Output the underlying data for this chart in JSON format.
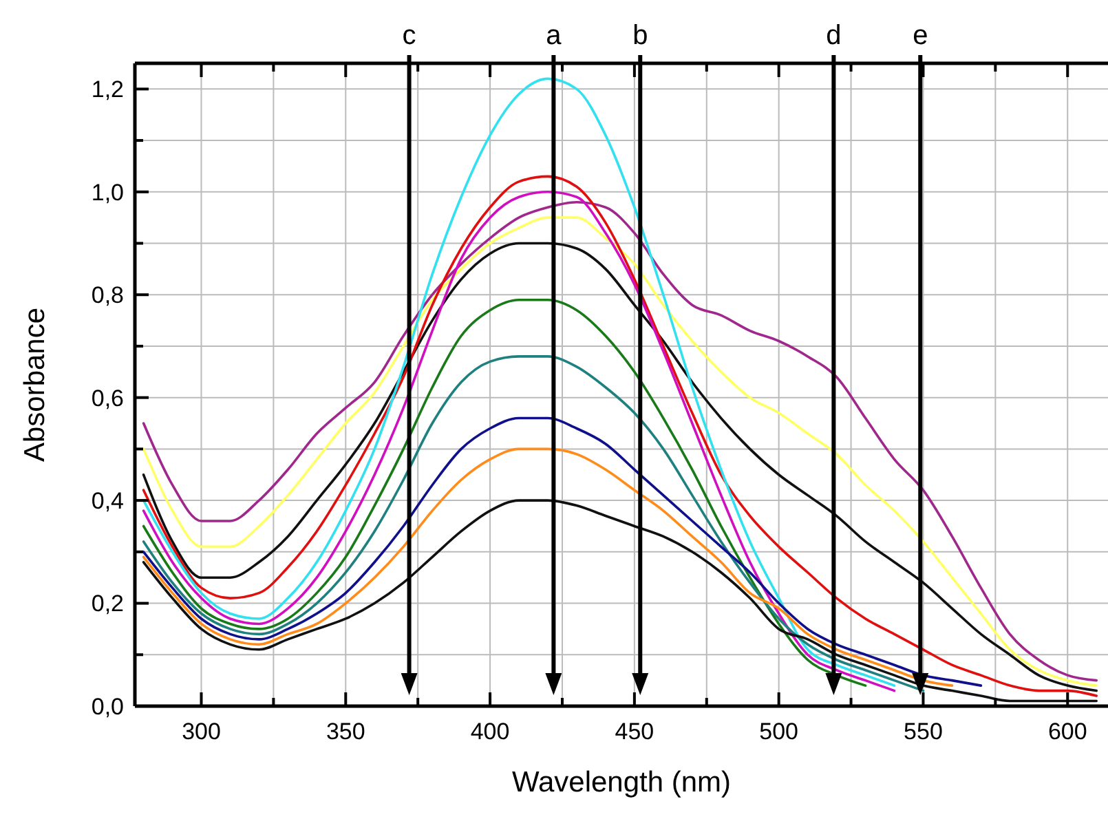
{
  "chart_data": {
    "type": "line",
    "xlabel": "Wavelength (nm)",
    "ylabel": "Absorbance",
    "x": [
      280,
      290,
      300,
      310,
      320,
      330,
      340,
      350,
      360,
      370,
      380,
      390,
      400,
      410,
      420,
      430,
      440,
      450,
      460,
      470,
      480,
      490,
      500,
      510,
      520,
      530,
      540,
      550,
      560,
      570,
      580,
      590,
      600,
      610
    ],
    "series": [
      {
        "color": "#a0288c",
        "values": [
          0.55,
          0.43,
          0.36,
          0.36,
          0.4,
          0.46,
          0.53,
          0.58,
          0.63,
          0.72,
          0.8,
          0.86,
          0.91,
          0.95,
          0.97,
          0.98,
          0.97,
          0.92,
          0.84,
          0.78,
          0.76,
          0.73,
          0.71,
          0.68,
          0.64,
          0.56,
          0.48,
          0.42,
          0.33,
          0.23,
          0.14,
          0.09,
          0.06,
          0.05
        ]
      },
      {
        "color": "#ffff66",
        "values": [
          0.5,
          0.38,
          0.31,
          0.31,
          0.35,
          0.41,
          0.48,
          0.55,
          0.61,
          0.7,
          0.79,
          0.85,
          0.9,
          0.93,
          0.95,
          0.95,
          0.91,
          0.86,
          0.78,
          0.71,
          0.65,
          0.6,
          0.57,
          0.53,
          0.49,
          0.43,
          0.38,
          0.32,
          0.25,
          0.18,
          0.11,
          0.07,
          0.05,
          0.04
        ]
      },
      {
        "color": "#111111",
        "values": [
          0.45,
          0.32,
          0.25,
          0.25,
          0.28,
          0.33,
          0.4,
          0.47,
          0.55,
          0.65,
          0.75,
          0.83,
          0.88,
          0.9,
          0.9,
          0.89,
          0.85,
          0.78,
          0.71,
          0.63,
          0.56,
          0.5,
          0.45,
          0.41,
          0.37,
          0.32,
          0.28,
          0.24,
          0.19,
          0.14,
          0.1,
          0.06,
          0.04,
          0.03
        ]
      },
      {
        "color": "#e01010",
        "values": [
          0.42,
          0.31,
          0.23,
          0.21,
          0.22,
          0.27,
          0.34,
          0.43,
          0.53,
          0.64,
          0.78,
          0.89,
          0.97,
          1.02,
          1.03,
          1.01,
          0.94,
          0.83,
          0.7,
          0.57,
          0.45,
          0.37,
          0.31,
          0.26,
          0.21,
          0.17,
          0.14,
          0.11,
          0.08,
          0.06,
          0.04,
          0.03,
          0.03,
          0.02
        ]
      },
      {
        "color": "#33e0f0",
        "values": [
          0.4,
          0.3,
          0.22,
          0.18,
          0.17,
          0.21,
          0.28,
          0.38,
          0.5,
          0.66,
          0.84,
          0.99,
          1.11,
          1.19,
          1.22,
          1.2,
          1.11,
          0.97,
          0.8,
          0.62,
          0.46,
          0.32,
          0.21,
          0.11,
          0.08,
          0.06,
          0.04,
          null,
          null,
          null,
          null,
          null,
          null,
          null
        ]
      },
      {
        "color": "#d010c0",
        "values": [
          0.38,
          0.28,
          0.21,
          0.17,
          0.16,
          0.19,
          0.25,
          0.34,
          0.45,
          0.58,
          0.73,
          0.87,
          0.95,
          0.99,
          1.0,
          0.99,
          0.92,
          0.82,
          0.69,
          0.55,
          0.41,
          0.28,
          0.18,
          0.1,
          0.07,
          0.05,
          0.03,
          null,
          null,
          null,
          null,
          null,
          null,
          null
        ]
      },
      {
        "color": "#1a7a1a",
        "values": [
          0.35,
          0.26,
          0.19,
          0.16,
          0.15,
          0.17,
          0.22,
          0.29,
          0.39,
          0.5,
          0.62,
          0.72,
          0.77,
          0.79,
          0.79,
          0.77,
          0.72,
          0.65,
          0.56,
          0.46,
          0.35,
          0.25,
          0.16,
          0.09,
          0.06,
          0.04,
          null,
          null,
          null,
          null,
          null,
          null,
          null,
          null
        ]
      },
      {
        "color": "#1f8080",
        "values": [
          0.32,
          0.24,
          0.18,
          0.15,
          0.14,
          0.16,
          0.2,
          0.26,
          0.34,
          0.44,
          0.55,
          0.63,
          0.67,
          0.68,
          0.68,
          0.66,
          0.62,
          0.57,
          0.5,
          0.41,
          0.32,
          0.24,
          0.17,
          0.12,
          0.09,
          0.07,
          0.05,
          0.03,
          null,
          null,
          null,
          null,
          null,
          null
        ]
      },
      {
        "color": "#10108c",
        "values": [
          0.3,
          0.23,
          0.17,
          0.14,
          0.13,
          0.15,
          0.18,
          0.22,
          0.28,
          0.35,
          0.43,
          0.5,
          0.54,
          0.56,
          0.56,
          0.54,
          0.51,
          0.46,
          0.41,
          0.36,
          0.31,
          0.26,
          0.2,
          0.15,
          0.12,
          0.1,
          0.08,
          0.06,
          0.05,
          0.04,
          null,
          null,
          null,
          null
        ]
      },
      {
        "color": "#ff8c1a",
        "values": [
          0.29,
          0.22,
          0.16,
          0.13,
          0.12,
          0.14,
          0.16,
          0.2,
          0.25,
          0.31,
          0.38,
          0.44,
          0.48,
          0.5,
          0.5,
          0.49,
          0.46,
          0.42,
          0.38,
          0.33,
          0.28,
          0.22,
          0.19,
          0.14,
          0.11,
          0.09,
          0.07,
          0.05,
          0.04,
          null,
          null,
          null,
          null,
          null
        ]
      },
      {
        "color": "#111111",
        "values": [
          0.28,
          0.21,
          0.15,
          0.12,
          0.11,
          0.13,
          0.15,
          0.17,
          0.2,
          0.24,
          0.29,
          0.34,
          0.38,
          0.4,
          0.4,
          0.39,
          0.37,
          0.35,
          0.33,
          0.3,
          0.26,
          0.21,
          0.15,
          0.13,
          0.1,
          0.08,
          0.06,
          0.04,
          0.03,
          0.02,
          0.01,
          0.01,
          0.01,
          0.01
        ]
      }
    ],
    "xlim": [
      277,
      614
    ],
    "ylim": [
      0,
      1.25
    ],
    "xticks": [
      300,
      {
        "value": 325,
        "label": null
      },
      350,
      {
        "value": 375,
        "label": null
      },
      400,
      {
        "value": 425,
        "label": null
      },
      450,
      {
        "value": 475,
        "label": null
      },
      500,
      {
        "value": 525,
        "label": null
      },
      550,
      {
        "value": 575,
        "label": null
      },
      600
    ],
    "yticks": [
      {
        "value": 0,
        "label": "0,0"
      },
      {
        "value": 0.1,
        "label": null
      },
      {
        "value": 0.2,
        "label": "0,2"
      },
      {
        "value": 0.3,
        "label": null
      },
      {
        "value": 0.4,
        "label": "0,4"
      },
      {
        "value": 0.5,
        "label": null
      },
      {
        "value": 0.6,
        "label": "0,6"
      },
      {
        "value": 0.7,
        "label": null
      },
      {
        "value": 0.8,
        "label": "0,8"
      },
      {
        "value": 0.9,
        "label": null
      },
      {
        "value": 1.0,
        "label": "1,0"
      },
      {
        "value": 1.1,
        "label": null
      },
      {
        "value": 1.2,
        "label": "1,2"
      }
    ],
    "grid": true,
    "marker": "none",
    "line_style": "solid",
    "ref_lines": [
      {
        "axis": "x",
        "value": 372,
        "label": "c",
        "color": "#000000"
      },
      {
        "axis": "x",
        "value": 422,
        "label": "a",
        "color": "#000000"
      },
      {
        "axis": "x",
        "value": 452,
        "label": "b",
        "color": "#000000"
      },
      {
        "axis": "x",
        "value": 519,
        "label": "d",
        "color": "#000000"
      },
      {
        "axis": "x",
        "value": 549,
        "label": "e",
        "color": "#000000"
      }
    ]
  }
}
